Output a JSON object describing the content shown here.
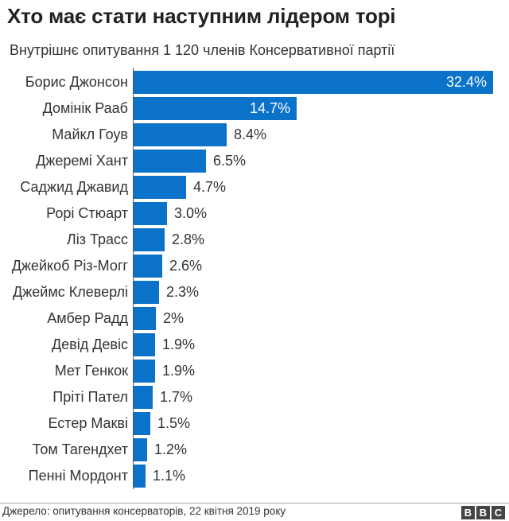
{
  "header": {
    "title": "Хто має стати наступним лідером торі",
    "subtitle": "Внутрішнє опитування 1 120 членів Консервативної партії"
  },
  "footer": {
    "source": "Джерело: опитування консерваторів, 22 квітня 2019 року",
    "logo": [
      "B",
      "B",
      "C"
    ]
  },
  "colors": {
    "bar": "#0a72c8",
    "text": "#333333",
    "axis": "#555555"
  },
  "chart_data": {
    "type": "bar",
    "orientation": "horizontal",
    "title": "Хто має стати наступним лідером торі",
    "subtitle": "Внутрішнє опитування 1 120 членів Консервативної партії",
    "xlabel": "",
    "ylabel": "",
    "unit": "%",
    "grid": false,
    "legend": null,
    "categories": [
      "Борис Джонсон",
      "Домінік Рааб",
      "Майкл Гоув",
      "Джеремі Хант",
      "Саджид Джавид",
      "Рорі Стюарт",
      "Ліз Трасс",
      "Джейкоб Різ-Могг",
      "Джеймс Клеверлі",
      "Амбер Радд",
      "Девід Девіс",
      "Мет Генкок",
      "Пріті Пател",
      "Естер Макві",
      "Том Тагендхет",
      "Пенні Мордонт"
    ],
    "values": [
      32.4,
      14.7,
      8.4,
      6.5,
      4.7,
      3.0,
      2.8,
      2.6,
      2.3,
      2,
      1.9,
      1.9,
      1.7,
      1.5,
      1.2,
      1.1
    ],
    "value_labels": [
      "32.4%",
      "14.7%",
      "8.4%",
      "6.5%",
      "4.7%",
      "3.0%",
      "2.8%",
      "2.6%",
      "2.3%",
      "2%",
      "1.9%",
      "1.9%",
      "1.7%",
      "1.5%",
      "1.2%",
      "1.1%"
    ],
    "xlim": [
      0,
      32.4
    ],
    "source": "Джерело: опитування консерваторів, 22 квітня 2019 року"
  }
}
